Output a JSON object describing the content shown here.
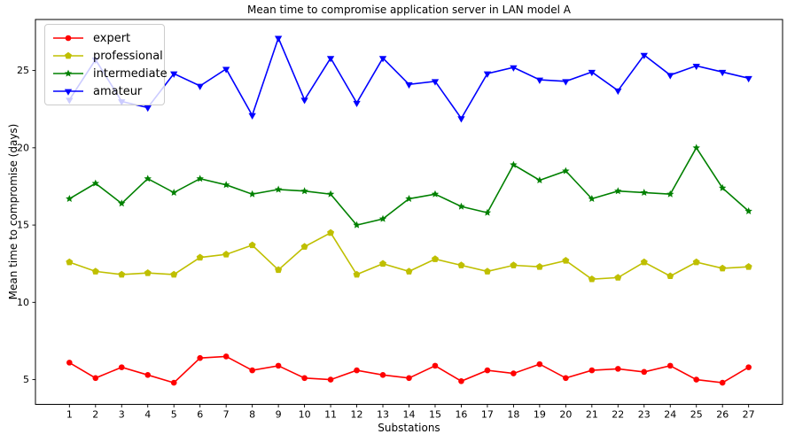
{
  "chart_data": {
    "type": "line",
    "title": "Mean time to compromise application server in LAN model A",
    "xlabel": "Substations",
    "ylabel": "Mean time to compromise (days)",
    "categories": [
      "1",
      "2",
      "3",
      "4",
      "5",
      "6",
      "7",
      "8",
      "9",
      "10",
      "11",
      "12",
      "13",
      "14",
      "15",
      "16",
      "17",
      "18",
      "19",
      "20",
      "21",
      "22",
      "23",
      "24",
      "25",
      "26",
      "27"
    ],
    "yticks": [
      5,
      10,
      15,
      20,
      25
    ],
    "xlim": [
      -0.3,
      28.3
    ],
    "ylim": [
      3.4,
      28.3
    ],
    "grid": false,
    "legend_position": "upper left",
    "series": [
      {
        "name": "expert",
        "color": "#ff0000",
        "marker": "circle",
        "values": [
          6.1,
          5.1,
          5.8,
          5.3,
          4.8,
          6.4,
          6.5,
          5.6,
          5.9,
          5.1,
          5.0,
          5.6,
          5.3,
          5.1,
          5.9,
          4.9,
          5.6,
          5.4,
          6.0,
          5.1,
          5.6,
          5.7,
          5.5,
          5.9,
          5.0,
          4.8,
          5.8
        ]
      },
      {
        "name": "professional",
        "color": "#bfbf00",
        "marker": "pentagon",
        "values": [
          12.6,
          12.0,
          11.8,
          11.9,
          11.8,
          12.9,
          13.1,
          13.7,
          12.1,
          13.6,
          14.5,
          11.8,
          12.5,
          12.0,
          12.8,
          12.4,
          12.0,
          12.4,
          12.3,
          12.7,
          11.5,
          11.6,
          12.6,
          11.7,
          12.6,
          12.2,
          12.3
        ]
      },
      {
        "name": "intermediate",
        "color": "#008000",
        "marker": "star",
        "values": [
          16.7,
          17.7,
          16.4,
          18.0,
          17.1,
          18.0,
          17.6,
          17.0,
          17.3,
          17.2,
          17.0,
          15.0,
          15.4,
          16.7,
          17.0,
          16.2,
          15.8,
          18.9,
          17.9,
          18.5,
          16.7,
          17.2,
          17.1,
          17.0,
          20.0,
          17.4,
          15.9
        ]
      },
      {
        "name": "amateur",
        "color": "#0000ff",
        "marker": "triangle-down",
        "values": [
          23.1,
          25.7,
          23.0,
          22.6,
          24.8,
          24.0,
          25.1,
          22.1,
          27.1,
          23.1,
          25.8,
          22.9,
          25.8,
          24.1,
          24.3,
          21.9,
          24.8,
          25.2,
          24.4,
          24.3,
          24.9,
          23.7,
          26.0,
          24.7,
          25.3,
          24.9,
          24.5
        ]
      }
    ]
  }
}
